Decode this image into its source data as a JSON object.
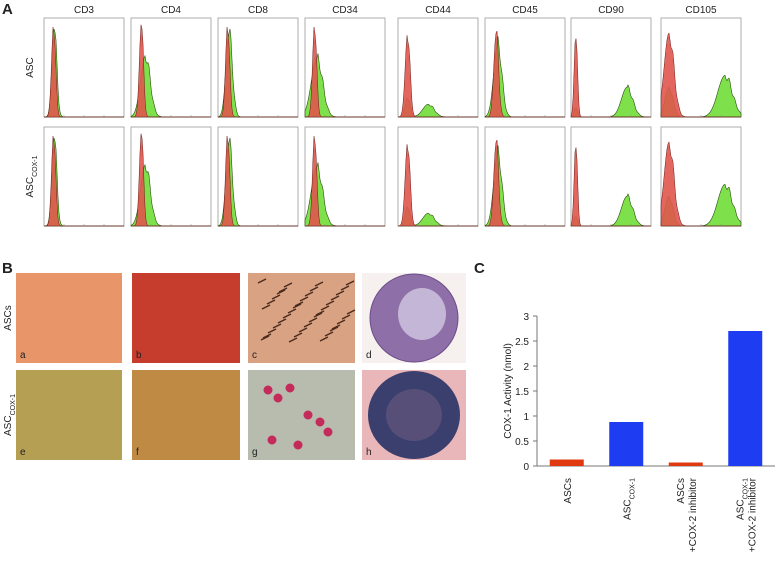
{
  "panel_a": {
    "label": "A",
    "markers": [
      "CD3",
      "CD4",
      "CD8",
      "CD34",
      "CD44",
      "CD45",
      "CD90",
      "CD105"
    ],
    "rows": [
      {
        "text": "ASC"
      },
      {
        "text": "ASC",
        "sub": "COX-1"
      }
    ]
  },
  "panel_b": {
    "label": "B",
    "rows": [
      {
        "text": "ASCs"
      },
      {
        "text": "ASC",
        "sub": "COX-1"
      }
    ],
    "images": [
      "a",
      "b",
      "c",
      "d",
      "e",
      "f",
      "g",
      "h"
    ]
  },
  "chart_data": {
    "type": "bar",
    "label": "C",
    "y_label": "COX-1 Activity (nmol)",
    "categories": [
      [
        {
          "text": "ASCs"
        }
      ],
      [
        {
          "text": "ASC",
          "sub": "COX-1"
        }
      ],
      [
        {
          "text": "ASCs"
        },
        {
          "text": "+COX-2 inhibitor"
        }
      ],
      [
        {
          "text": "ASC",
          "sub": "COX-1"
        },
        {
          "text": "+COX-2 inhibitor"
        }
      ]
    ],
    "values": [
      0.13,
      0.88,
      0.07,
      2.7
    ],
    "colors": [
      "#e0380f",
      "#1e3cf2",
      "#e0380f",
      "#1e3cf2"
    ],
    "ylim": [
      0,
      3
    ],
    "yticks": [
      0,
      0.5,
      1,
      1.5,
      2,
      2.5,
      3
    ]
  }
}
